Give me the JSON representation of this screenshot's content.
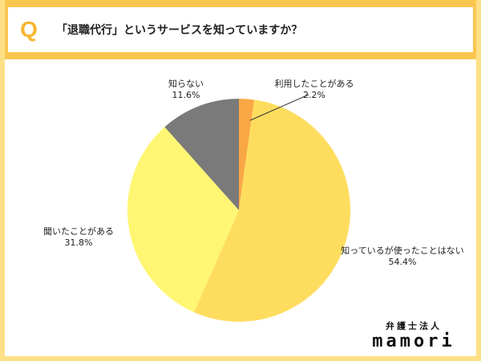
{
  "header": {
    "q_mark": "Q",
    "question": "「退職代行」というサービスを知っていますか？"
  },
  "chart_data": {
    "type": "pie",
    "start_angle_deg": 0,
    "direction": "clockwise",
    "slices": [
      {
        "label": "利用したことがある",
        "value": 2.2,
        "display": "2.2%",
        "color": "#f9a745"
      },
      {
        "label": "知っているが使ったことはない",
        "value": 54.4,
        "display": "54.4%",
        "color": "#fedd5e"
      },
      {
        "label": "聞いたことがある",
        "value": 31.8,
        "display": "31.8%",
        "color": "#fff673"
      },
      {
        "label": "知らない",
        "value": 11.6,
        "display": "11.6%",
        "color": "#7a7a7a"
      }
    ]
  },
  "brand": {
    "top": "弁護士法人",
    "main": "mamori"
  }
}
